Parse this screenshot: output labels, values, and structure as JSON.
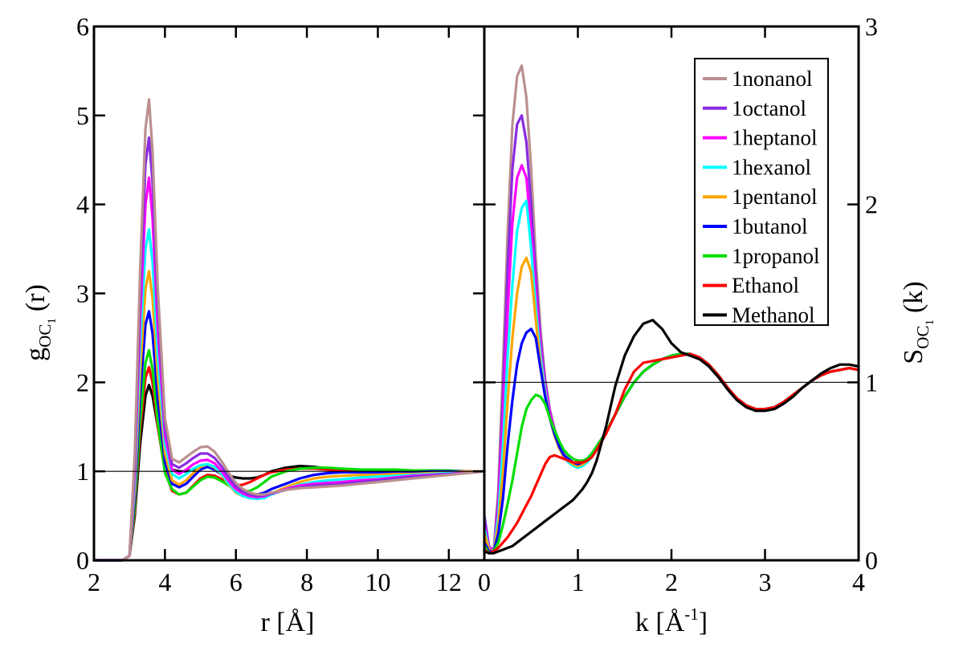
{
  "chart_data": [
    {
      "type": "line",
      "panel": "left",
      "xlabel": "r [Å]",
      "ylabel": {
        "main": "g",
        "sub": "OC",
        "subsub": "1",
        "tail": "(r)"
      },
      "xlim": [
        2,
        13
      ],
      "ylim": [
        0,
        6
      ],
      "xticks": [
        2,
        4,
        6,
        8,
        10,
        12
      ],
      "yticks": [
        0,
        1,
        2,
        3,
        4,
        5,
        6
      ],
      "reference_line": 1,
      "x": [
        2.0,
        2.8,
        3.0,
        3.15,
        3.3,
        3.45,
        3.55,
        3.65,
        3.8,
        4.0,
        4.2,
        4.4,
        4.6,
        4.8,
        5.0,
        5.2,
        5.4,
        5.6,
        5.8,
        6.0,
        6.2,
        6.4,
        6.6,
        6.8,
        7.0,
        7.4,
        7.8,
        8.2,
        8.6,
        9.0,
        9.5,
        10.0,
        10.5,
        11.0,
        11.5,
        12.0,
        12.5,
        13.0
      ],
      "series": [
        {
          "name": "Methanol",
          "color": "#000000",
          "values": [
            0,
            0,
            0.05,
            0.5,
            1.3,
            1.85,
            1.97,
            1.85,
            1.5,
            1.15,
            1.02,
            1.0,
            1.0,
            1.02,
            1.05,
            1.05,
            1.02,
            0.98,
            0.95,
            0.93,
            0.92,
            0.92,
            0.93,
            0.96,
            1.0,
            1.04,
            1.06,
            1.05,
            1.03,
            1.01,
            1.0,
            1.0,
            1.0,
            1.0,
            1.0,
            1.0,
            1.0,
            1.0
          ]
        },
        {
          "name": "Ethanol",
          "color": "#ff0000",
          "values": [
            0,
            0,
            0.05,
            0.55,
            1.45,
            2.05,
            2.17,
            2.0,
            1.5,
            1.0,
            0.78,
            0.74,
            0.76,
            0.84,
            0.92,
            0.96,
            0.95,
            0.91,
            0.87,
            0.84,
            0.85,
            0.88,
            0.92,
            0.96,
            0.99,
            1.02,
            1.03,
            1.03,
            1.02,
            1.01,
            1.0,
            1.0,
            1.0,
            1.0,
            1.0,
            1.0,
            1.0,
            1.0
          ]
        },
        {
          "name": "1propanol",
          "color": "#00dd00",
          "values": [
            0,
            0,
            0.05,
            0.6,
            1.55,
            2.22,
            2.36,
            2.15,
            1.55,
            0.98,
            0.8,
            0.74,
            0.76,
            0.83,
            0.9,
            0.94,
            0.93,
            0.89,
            0.84,
            0.79,
            0.77,
            0.78,
            0.82,
            0.88,
            0.94,
            1.0,
            1.03,
            1.04,
            1.04,
            1.03,
            1.02,
            1.02,
            1.02,
            1.01,
            1.01,
            1.01,
            1.0,
            1.0
          ]
        },
        {
          "name": "1butanol",
          "color": "#0000ff",
          "values": [
            0,
            0,
            0.05,
            0.7,
            1.85,
            2.65,
            2.8,
            2.55,
            1.8,
            1.1,
            0.86,
            0.82,
            0.86,
            0.94,
            1.02,
            1.05,
            1.02,
            0.96,
            0.88,
            0.8,
            0.76,
            0.74,
            0.74,
            0.76,
            0.8,
            0.86,
            0.92,
            0.96,
            0.98,
            0.99,
            0.99,
            0.99,
            0.99,
            0.99,
            1.0,
            1.0,
            1.0,
            1.0
          ]
        },
        {
          "name": "1pentanol",
          "color": "#ffa500",
          "values": [
            0,
            0,
            0.05,
            0.8,
            2.1,
            3.05,
            3.25,
            2.95,
            2.05,
            1.2,
            0.9,
            0.85,
            0.9,
            0.98,
            1.05,
            1.08,
            1.04,
            0.96,
            0.85,
            0.76,
            0.72,
            0.7,
            0.69,
            0.71,
            0.75,
            0.82,
            0.88,
            0.92,
            0.94,
            0.95,
            0.96,
            0.96,
            0.97,
            0.97,
            0.98,
            0.99,
            1.0,
            1.0
          ]
        },
        {
          "name": "1hexanol",
          "color": "#00ffff",
          "values": [
            0,
            0,
            0.05,
            0.9,
            2.4,
            3.5,
            3.72,
            3.35,
            2.3,
            1.3,
            0.97,
            0.92,
            0.97,
            1.03,
            1.07,
            1.08,
            1.05,
            0.97,
            0.86,
            0.77,
            0.72,
            0.7,
            0.69,
            0.7,
            0.74,
            0.8,
            0.85,
            0.88,
            0.9,
            0.91,
            0.93,
            0.94,
            0.95,
            0.96,
            0.97,
            0.98,
            0.99,
            1.0
          ]
        },
        {
          "name": "1heptanol",
          "color": "#ff00ff",
          "values": [
            0,
            0,
            0.05,
            1.0,
            2.7,
            4.0,
            4.3,
            3.85,
            2.6,
            1.4,
            1.02,
            0.97,
            1.02,
            1.08,
            1.12,
            1.13,
            1.09,
            1.0,
            0.89,
            0.8,
            0.75,
            0.72,
            0.71,
            0.72,
            0.75,
            0.8,
            0.84,
            0.86,
            0.87,
            0.88,
            0.9,
            0.91,
            0.93,
            0.95,
            0.96,
            0.97,
            0.99,
            1.0
          ]
        },
        {
          "name": "1octanol",
          "color": "#8a2be2",
          "values": [
            0,
            0,
            0.05,
            1.1,
            3.0,
            4.45,
            4.75,
            4.25,
            2.85,
            1.5,
            1.08,
            1.04,
            1.09,
            1.15,
            1.2,
            1.2,
            1.15,
            1.05,
            0.93,
            0.83,
            0.77,
            0.74,
            0.72,
            0.73,
            0.75,
            0.79,
            0.82,
            0.84,
            0.85,
            0.86,
            0.88,
            0.9,
            0.92,
            0.94,
            0.95,
            0.97,
            0.98,
            1.0
          ]
        },
        {
          "name": "1nonanol",
          "color": "#bc8f8f",
          "values": [
            0,
            0,
            0.05,
            1.2,
            3.25,
            4.85,
            5.18,
            4.6,
            3.05,
            1.6,
            1.14,
            1.1,
            1.16,
            1.22,
            1.27,
            1.28,
            1.22,
            1.11,
            0.98,
            0.87,
            0.8,
            0.76,
            0.74,
            0.74,
            0.76,
            0.79,
            0.81,
            0.82,
            0.83,
            0.84,
            0.86,
            0.88,
            0.9,
            0.92,
            0.94,
            0.96,
            0.98,
            1.0
          ]
        }
      ]
    },
    {
      "type": "line",
      "panel": "right",
      "xlabel": {
        "main": "k [Å",
        "sup": "-1",
        "tail": "]"
      },
      "ylabel": {
        "main": "S",
        "sub": "OC",
        "subsub": "1",
        "tail": "(k)"
      },
      "xlim": [
        0,
        4
      ],
      "ylim": [
        0,
        3
      ],
      "xticks": [
        0,
        1,
        2,
        3,
        4
      ],
      "yticks": [
        0,
        1,
        2,
        3
      ],
      "reference_line": 1,
      "legend_position": "top-right",
      "x": [
        0.0,
        0.05,
        0.1,
        0.15,
        0.2,
        0.25,
        0.3,
        0.35,
        0.4,
        0.45,
        0.5,
        0.55,
        0.6,
        0.65,
        0.7,
        0.75,
        0.8,
        0.85,
        0.9,
        0.95,
        1.0,
        1.05,
        1.1,
        1.15,
        1.2,
        1.3,
        1.4,
        1.5,
        1.6,
        1.7,
        1.8,
        1.9,
        2.0,
        2.1,
        2.2,
        2.3,
        2.4,
        2.5,
        2.6,
        2.7,
        2.8,
        2.9,
        3.0,
        3.1,
        3.2,
        3.3,
        3.4,
        3.5,
        3.6,
        3.7,
        3.8,
        3.9,
        4.0
      ],
      "series": [
        {
          "name": "1nonanol",
          "color": "#bc8f8f",
          "values": [
            0.25,
            0.08,
            0.05,
            0.4,
            1.1,
            1.85,
            2.45,
            2.72,
            2.78,
            2.6,
            2.2,
            1.7,
            1.3,
            1.02,
            0.85,
            0.74,
            0.66,
            0.6,
            0.56,
            0.54,
            0.53,
            0.54,
            0.56,
            0.59,
            0.63,
            0.72,
            0.82,
            0.92,
            1.0,
            1.06,
            1.1,
            1.13,
            1.15,
            1.16,
            1.16,
            1.14,
            1.1,
            1.04,
            0.97,
            0.91,
            0.87,
            0.85,
            0.85,
            0.86,
            0.89,
            0.93,
            0.97,
            1.01,
            1.04,
            1.06,
            1.07,
            1.08,
            1.07
          ]
        },
        {
          "name": "1octanol",
          "color": "#8a2be2",
          "values": [
            0.25,
            0.08,
            0.05,
            0.35,
            0.95,
            1.65,
            2.2,
            2.45,
            2.5,
            2.35,
            2.0,
            1.6,
            1.25,
            1.0,
            0.84,
            0.73,
            0.65,
            0.59,
            0.56,
            0.54,
            0.53,
            0.54,
            0.56,
            0.59,
            0.63,
            0.72,
            0.82,
            0.92,
            1.0,
            1.06,
            1.1,
            1.13,
            1.15,
            1.16,
            1.16,
            1.14,
            1.1,
            1.04,
            0.97,
            0.91,
            0.87,
            0.85,
            0.85,
            0.86,
            0.89,
            0.93,
            0.97,
            1.01,
            1.04,
            1.06,
            1.07,
            1.08,
            1.07
          ]
        },
        {
          "name": "1heptanol",
          "color": "#ff00ff",
          "values": [
            0.2,
            0.07,
            0.05,
            0.3,
            0.8,
            1.4,
            1.9,
            2.15,
            2.22,
            2.15,
            1.85,
            1.5,
            1.2,
            0.98,
            0.83,
            0.72,
            0.65,
            0.59,
            0.56,
            0.54,
            0.53,
            0.54,
            0.56,
            0.59,
            0.63,
            0.72,
            0.82,
            0.92,
            1.0,
            1.06,
            1.1,
            1.13,
            1.15,
            1.16,
            1.16,
            1.14,
            1.1,
            1.04,
            0.97,
            0.91,
            0.87,
            0.85,
            0.85,
            0.86,
            0.89,
            0.93,
            0.97,
            1.01,
            1.04,
            1.06,
            1.07,
            1.08,
            1.07
          ]
        },
        {
          "name": "1hexanol",
          "color": "#00ffff",
          "values": [
            0.18,
            0.06,
            0.05,
            0.25,
            0.65,
            1.15,
            1.55,
            1.85,
            1.98,
            2.02,
            1.75,
            1.42,
            1.15,
            0.95,
            0.8,
            0.7,
            0.63,
            0.58,
            0.55,
            0.53,
            0.52,
            0.53,
            0.55,
            0.58,
            0.62,
            0.72,
            0.82,
            0.92,
            1.0,
            1.06,
            1.1,
            1.13,
            1.15,
            1.16,
            1.16,
            1.14,
            1.1,
            1.04,
            0.97,
            0.91,
            0.87,
            0.85,
            0.85,
            0.86,
            0.89,
            0.93,
            0.97,
            1.01,
            1.04,
            1.06,
            1.07,
            1.08,
            1.07
          ]
        },
        {
          "name": "1pentanol",
          "color": "#ffa500",
          "values": [
            0.15,
            0.06,
            0.05,
            0.2,
            0.5,
            0.9,
            1.25,
            1.5,
            1.65,
            1.7,
            1.62,
            1.35,
            1.1,
            0.93,
            0.8,
            0.7,
            0.63,
            0.58,
            0.56,
            0.54,
            0.53,
            0.54,
            0.56,
            0.59,
            0.63,
            0.72,
            0.82,
            0.92,
            1.0,
            1.06,
            1.1,
            1.13,
            1.15,
            1.16,
            1.16,
            1.14,
            1.1,
            1.04,
            0.97,
            0.91,
            0.87,
            0.85,
            0.85,
            0.86,
            0.89,
            0.93,
            0.97,
            1.01,
            1.04,
            1.06,
            1.07,
            1.08,
            1.07
          ]
        },
        {
          "name": "1butanol",
          "color": "#0000ff",
          "values": [
            0.1,
            0.05,
            0.05,
            0.15,
            0.35,
            0.65,
            0.9,
            1.1,
            1.22,
            1.28,
            1.3,
            1.25,
            1.08,
            0.92,
            0.8,
            0.71,
            0.64,
            0.59,
            0.57,
            0.55,
            0.54,
            0.55,
            0.57,
            0.6,
            0.64,
            0.72,
            0.82,
            0.92,
            1.0,
            1.06,
            1.1,
            1.13,
            1.15,
            1.16,
            1.16,
            1.14,
            1.1,
            1.04,
            0.97,
            0.91,
            0.87,
            0.85,
            0.85,
            0.86,
            0.89,
            0.93,
            0.97,
            1.01,
            1.04,
            1.06,
            1.07,
            1.08,
            1.07
          ]
        },
        {
          "name": "1propanol",
          "color": "#00dd00",
          "values": [
            0.08,
            0.04,
            0.05,
            0.1,
            0.2,
            0.32,
            0.45,
            0.6,
            0.75,
            0.85,
            0.9,
            0.93,
            0.92,
            0.88,
            0.8,
            0.73,
            0.67,
            0.62,
            0.59,
            0.57,
            0.56,
            0.56,
            0.57,
            0.6,
            0.64,
            0.72,
            0.82,
            0.92,
            1.0,
            1.06,
            1.1,
            1.13,
            1.15,
            1.16,
            1.16,
            1.14,
            1.1,
            1.04,
            0.97,
            0.91,
            0.87,
            0.85,
            0.85,
            0.86,
            0.89,
            0.93,
            0.97,
            1.01,
            1.04,
            1.06,
            1.07,
            1.08,
            1.07
          ]
        },
        {
          "name": "Ethanol",
          "color": "#ff0000",
          "values": [
            0.06,
            0.04,
            0.05,
            0.07,
            0.1,
            0.13,
            0.17,
            0.21,
            0.26,
            0.31,
            0.36,
            0.42,
            0.48,
            0.54,
            0.58,
            0.59,
            0.58,
            0.57,
            0.56,
            0.55,
            0.55,
            0.55,
            0.56,
            0.58,
            0.62,
            0.71,
            0.82,
            0.96,
            1.06,
            1.11,
            1.12,
            1.13,
            1.14,
            1.15,
            1.16,
            1.14,
            1.1,
            1.04,
            0.97,
            0.91,
            0.87,
            0.85,
            0.85,
            0.86,
            0.89,
            0.93,
            0.97,
            1.01,
            1.04,
            1.06,
            1.07,
            1.08,
            1.07
          ]
        },
        {
          "name": "Methanol",
          "color": "#000000",
          "values": [
            0.05,
            0.04,
            0.04,
            0.05,
            0.06,
            0.07,
            0.08,
            0.1,
            0.12,
            0.14,
            0.16,
            0.18,
            0.2,
            0.22,
            0.24,
            0.26,
            0.28,
            0.3,
            0.32,
            0.34,
            0.37,
            0.4,
            0.44,
            0.49,
            0.56,
            0.75,
            0.98,
            1.15,
            1.26,
            1.33,
            1.35,
            1.3,
            1.22,
            1.17,
            1.15,
            1.13,
            1.09,
            1.03,
            0.96,
            0.9,
            0.86,
            0.84,
            0.84,
            0.85,
            0.88,
            0.92,
            0.97,
            1.01,
            1.05,
            1.08,
            1.1,
            1.1,
            1.09
          ]
        }
      ]
    }
  ]
}
